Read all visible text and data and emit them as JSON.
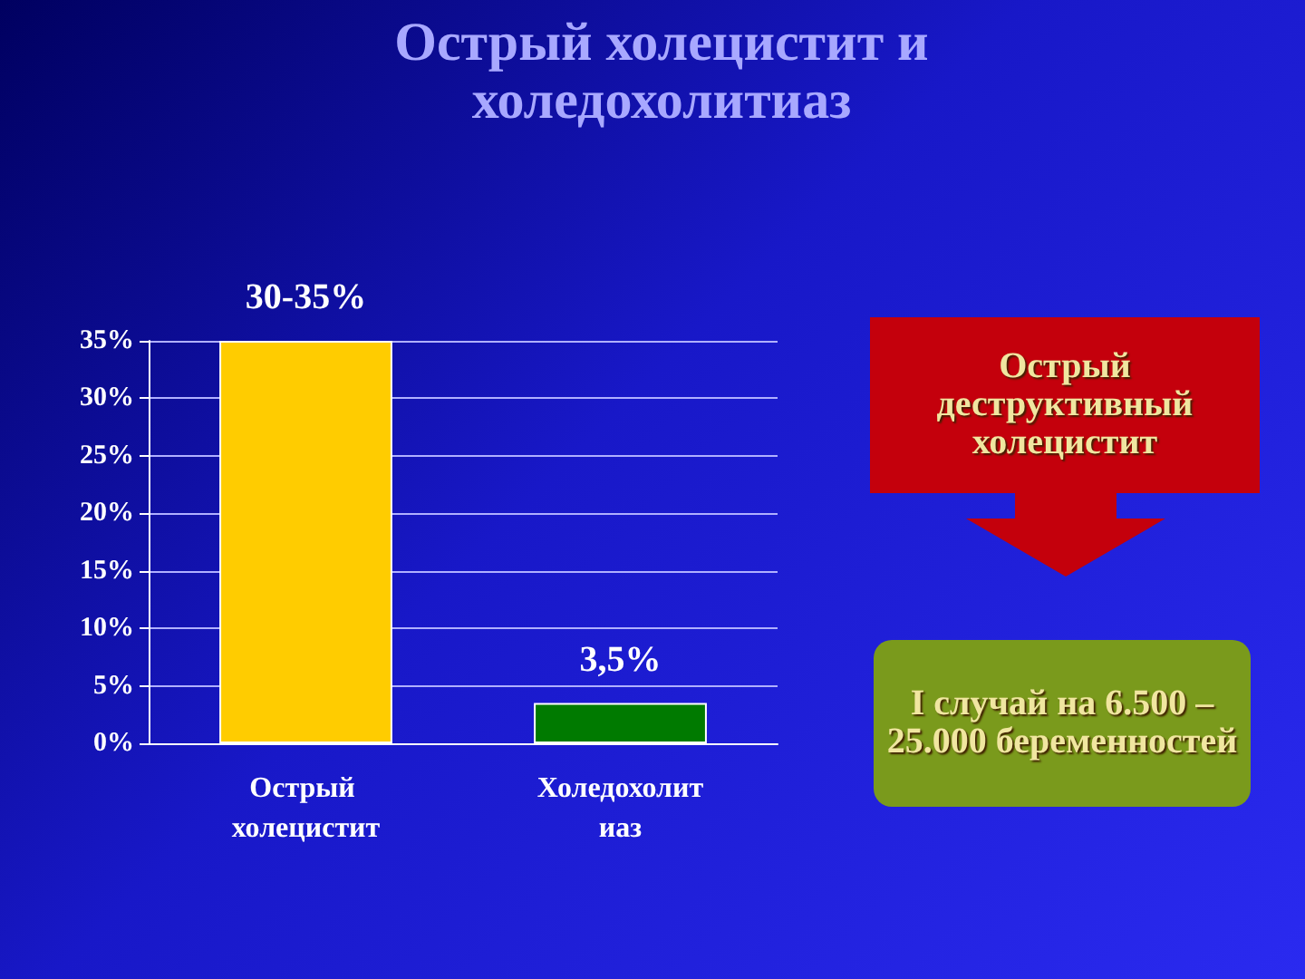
{
  "chart_data": {
    "type": "bar",
    "title": "Острый холецистит и холедохолитиаз",
    "categories": [
      "Острый холецистит",
      "Холедохолитиаз"
    ],
    "values": [
      35,
      3.5
    ],
    "colors": [
      "#ffcc00",
      "#007a00"
    ],
    "value_labels": [
      null,
      "3,5%"
    ],
    "ylim": [
      0,
      35
    ],
    "yticks": [
      {
        "value": 0,
        "label": "0%"
      },
      {
        "value": 5,
        "label": "5%"
      },
      {
        "value": 10,
        "label": "10%"
      },
      {
        "value": 15,
        "label": "15%"
      },
      {
        "value": 20,
        "label": "20%"
      },
      {
        "value": 25,
        "label": "25%"
      },
      {
        "value": 30,
        "label": "30%"
      },
      {
        "value": 35,
        "label": "35%"
      }
    ],
    "grid": "y",
    "annotations": [
      "Острый деструктивный холецистит",
      "I случай на 6.500 – 25.000 беременностей",
      {
        "text": "30-35%",
        "x": "Острый холецистит",
        "y": 35
      }
    ]
  }
}
